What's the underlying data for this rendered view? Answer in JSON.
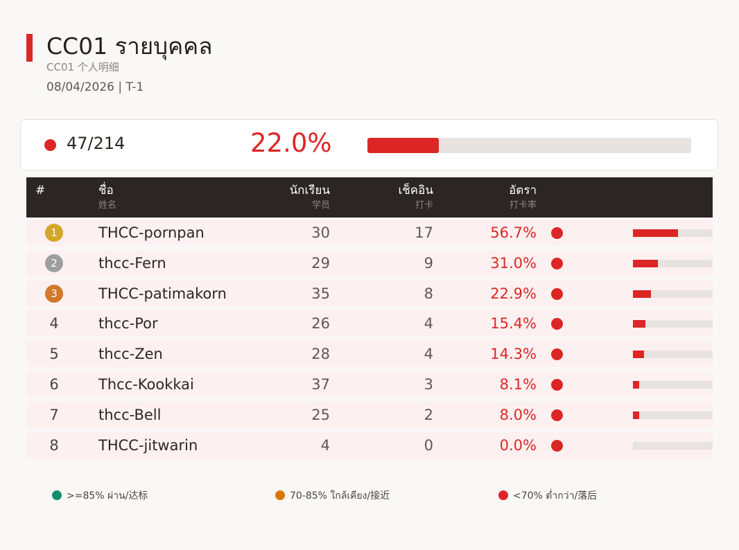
{
  "header": {
    "title": "CC01  รายบุคคล",
    "subtitle": "CC01  个人明细",
    "meta": "08/04/2026   |   T-1"
  },
  "summary": {
    "count": "47/214",
    "rate": "22.0%",
    "rate_value": 22.0,
    "status_color": "#dc2626"
  },
  "table": {
    "headers": {
      "rank": "#",
      "name": "ชื่อ",
      "name_sub": "姓名",
      "students": "นักเรียน",
      "students_sub": "学员",
      "checkins": "เช็คอิน",
      "checkins_sub": "打卡",
      "rate": "อัตรา",
      "rate_sub": "打卡率"
    },
    "rows": [
      {
        "rank": "1",
        "name": "THCC-pornpan",
        "students": "30",
        "checkins": "17",
        "rate": "56.7%",
        "rate_value": 56.7
      },
      {
        "rank": "2",
        "name": "thcc-Fern",
        "students": "29",
        "checkins": "9",
        "rate": "31.0%",
        "rate_value": 31.0
      },
      {
        "rank": "3",
        "name": "THCC-patimakorn",
        "students": "35",
        "checkins": "8",
        "rate": "22.9%",
        "rate_value": 22.9
      },
      {
        "rank": "4",
        "name": "thcc-Por",
        "students": "26",
        "checkins": "4",
        "rate": "15.4%",
        "rate_value": 15.4
      },
      {
        "rank": "5",
        "name": "thcc-Zen",
        "students": "28",
        "checkins": "4",
        "rate": "14.3%",
        "rate_value": 14.3
      },
      {
        "rank": "6",
        "name": "Thcc-Kookkai",
        "students": "37",
        "checkins": "3",
        "rate": "8.1%",
        "rate_value": 8.1
      },
      {
        "rank": "7",
        "name": "thcc-Bell",
        "students": "25",
        "checkins": "2",
        "rate": "8.0%",
        "rate_value": 8.0
      },
      {
        "rank": "8",
        "name": "THCC-jitwarin",
        "students": "4",
        "checkins": "0",
        "rate": "0.0%",
        "rate_value": 0.0
      }
    ]
  },
  "medal_colors": [
    "#d4a62a",
    "#9e9e9e",
    "#d0782c"
  ],
  "legend": [
    {
      "label": ">=85% ผ่าน/达标",
      "color": "#0f8f6c"
    },
    {
      "label": "70-85% ใกล้เคียง/接近",
      "color": "#d97706"
    },
    {
      "label": "<70% ต่ำกว่า/落后",
      "color": "#dc2626"
    }
  ]
}
